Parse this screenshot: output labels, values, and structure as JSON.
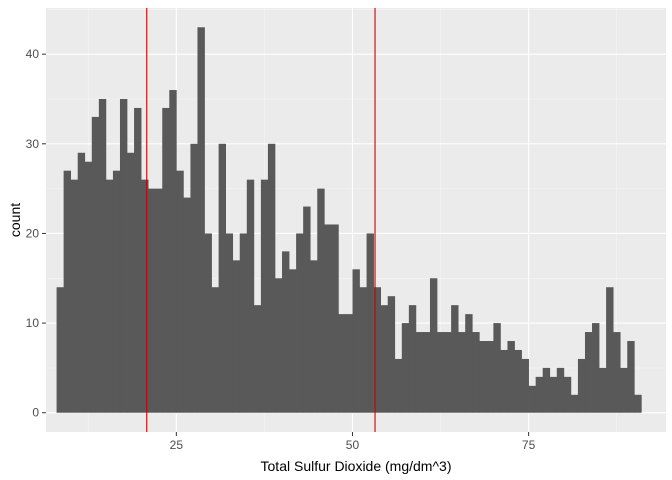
{
  "chart_data": {
    "type": "bar",
    "subtype": "histogram",
    "xlabel": "Total Sulfur Dioxide (mg/dm^3)",
    "ylabel": "count",
    "xlim": [
      6.5,
      94.5
    ],
    "ylim": [
      -2.15,
      45.15
    ],
    "bin_width": 1,
    "bin_start": 8,
    "values": [
      14,
      27,
      26,
      29,
      28,
      33,
      35,
      26,
      27,
      35,
      29,
      34,
      26,
      25,
      25,
      34,
      36,
      27,
      24,
      30,
      43,
      20,
      14,
      30,
      20,
      17,
      20,
      26,
      12,
      26,
      30,
      15,
      18,
      16,
      20,
      23,
      17,
      25,
      21,
      21,
      11,
      11,
      16,
      14,
      20,
      14,
      12,
      13,
      6,
      10,
      12,
      9,
      9,
      15,
      9,
      9,
      12,
      9,
      11,
      9,
      8,
      8,
      10,
      7,
      8,
      7,
      6,
      3,
      4,
      5,
      4,
      5,
      4,
      2,
      6,
      9,
      10,
      5,
      14,
      9,
      5,
      8,
      2
    ],
    "x_ticks": [
      25,
      50,
      75
    ],
    "x_tick_labels": [
      "25",
      "50",
      "75"
    ],
    "y_ticks": [
      0,
      10,
      20,
      30,
      40
    ],
    "y_tick_labels": [
      "0",
      "10",
      "20",
      "30",
      "40"
    ],
    "vlines": [
      20.8,
      53.2
    ],
    "colors": {
      "bars": "#595959",
      "panel": "#ebebeb",
      "grid_major": "#ffffff",
      "grid_minor": "#f5f5f5",
      "vline": "#cc0000",
      "tick": "#333333"
    }
  }
}
